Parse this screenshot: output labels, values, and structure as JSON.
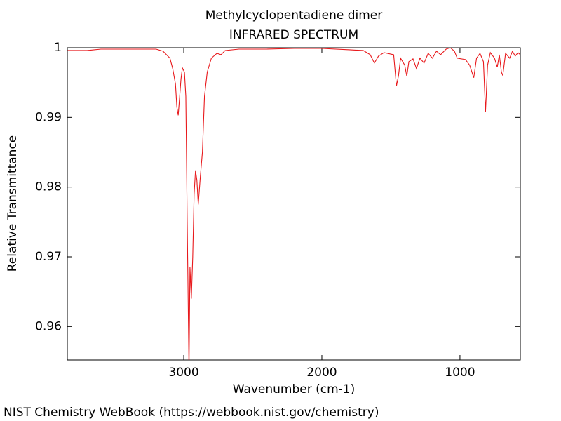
{
  "chart_data": {
    "type": "line",
    "title": "Methylcyclopentadiene dimer",
    "subtitle": "INFRARED SPECTRUM",
    "xlabel": "Wavenumber (cm-1)",
    "ylabel": "Relative Transmittance",
    "source": "NIST Chemistry WebBook (https://webbook.nist.gov/chemistry)",
    "color": "#e8191c",
    "x": [
      3840,
      3700,
      3600,
      3500,
      3400,
      3300,
      3200,
      3150,
      3100,
      3080,
      3060,
      3050,
      3040,
      3020,
      3010,
      2995,
      2985,
      2975,
      2962,
      2955,
      2945,
      2935,
      2925,
      2915,
      2905,
      2895,
      2880,
      2865,
      2850,
      2830,
      2800,
      2760,
      2730,
      2700,
      2600,
      2400,
      2200,
      2000,
      1800,
      1700,
      1650,
      1620,
      1590,
      1550,
      1480,
      1460,
      1445,
      1430,
      1400,
      1385,
      1370,
      1340,
      1315,
      1290,
      1260,
      1230,
      1200,
      1170,
      1140,
      1100,
      1070,
      1040,
      1020,
      960,
      930,
      900,
      880,
      855,
      830,
      815,
      800,
      780,
      750,
      730,
      715,
      700,
      690,
      670,
      640,
      620,
      600,
      580,
      563
    ],
    "values": [
      0.9996,
      0.9996,
      0.9998,
      0.9998,
      0.9998,
      0.9998,
      0.9998,
      0.9995,
      0.9985,
      0.997,
      0.9948,
      0.9915,
      0.9903,
      0.9955,
      0.9971,
      0.9965,
      0.993,
      0.975,
      0.9535,
      0.9685,
      0.964,
      0.97,
      0.979,
      0.9824,
      0.981,
      0.9775,
      0.9815,
      0.985,
      0.993,
      0.9965,
      0.9985,
      0.9992,
      0.999,
      0.9996,
      0.9998,
      0.9998,
      0.9999,
      0.9999,
      0.9997,
      0.9996,
      0.999,
      0.9978,
      0.9988,
      0.9993,
      0.999,
      0.9945,
      0.996,
      0.9985,
      0.9975,
      0.9959,
      0.998,
      0.9984,
      0.997,
      0.9985,
      0.9978,
      0.9992,
      0.9985,
      0.9995,
      0.999,
      0.9998,
      1.0,
      0.9995,
      0.9985,
      0.9983,
      0.9975,
      0.9957,
      0.9985,
      0.9992,
      0.998,
      0.9908,
      0.9975,
      0.9993,
      0.9985,
      0.9972,
      0.999,
      0.9965,
      0.996,
      0.9992,
      0.9985,
      0.9995,
      0.9988,
      0.9993,
      0.999
    ],
    "xlim": [
      3843,
      563
    ],
    "ylim": [
      0.9552,
      1
    ],
    "xticks": [
      3000,
      2000,
      1000
    ],
    "yticks": [
      0.96,
      0.97,
      0.98,
      0.99,
      1
    ]
  }
}
